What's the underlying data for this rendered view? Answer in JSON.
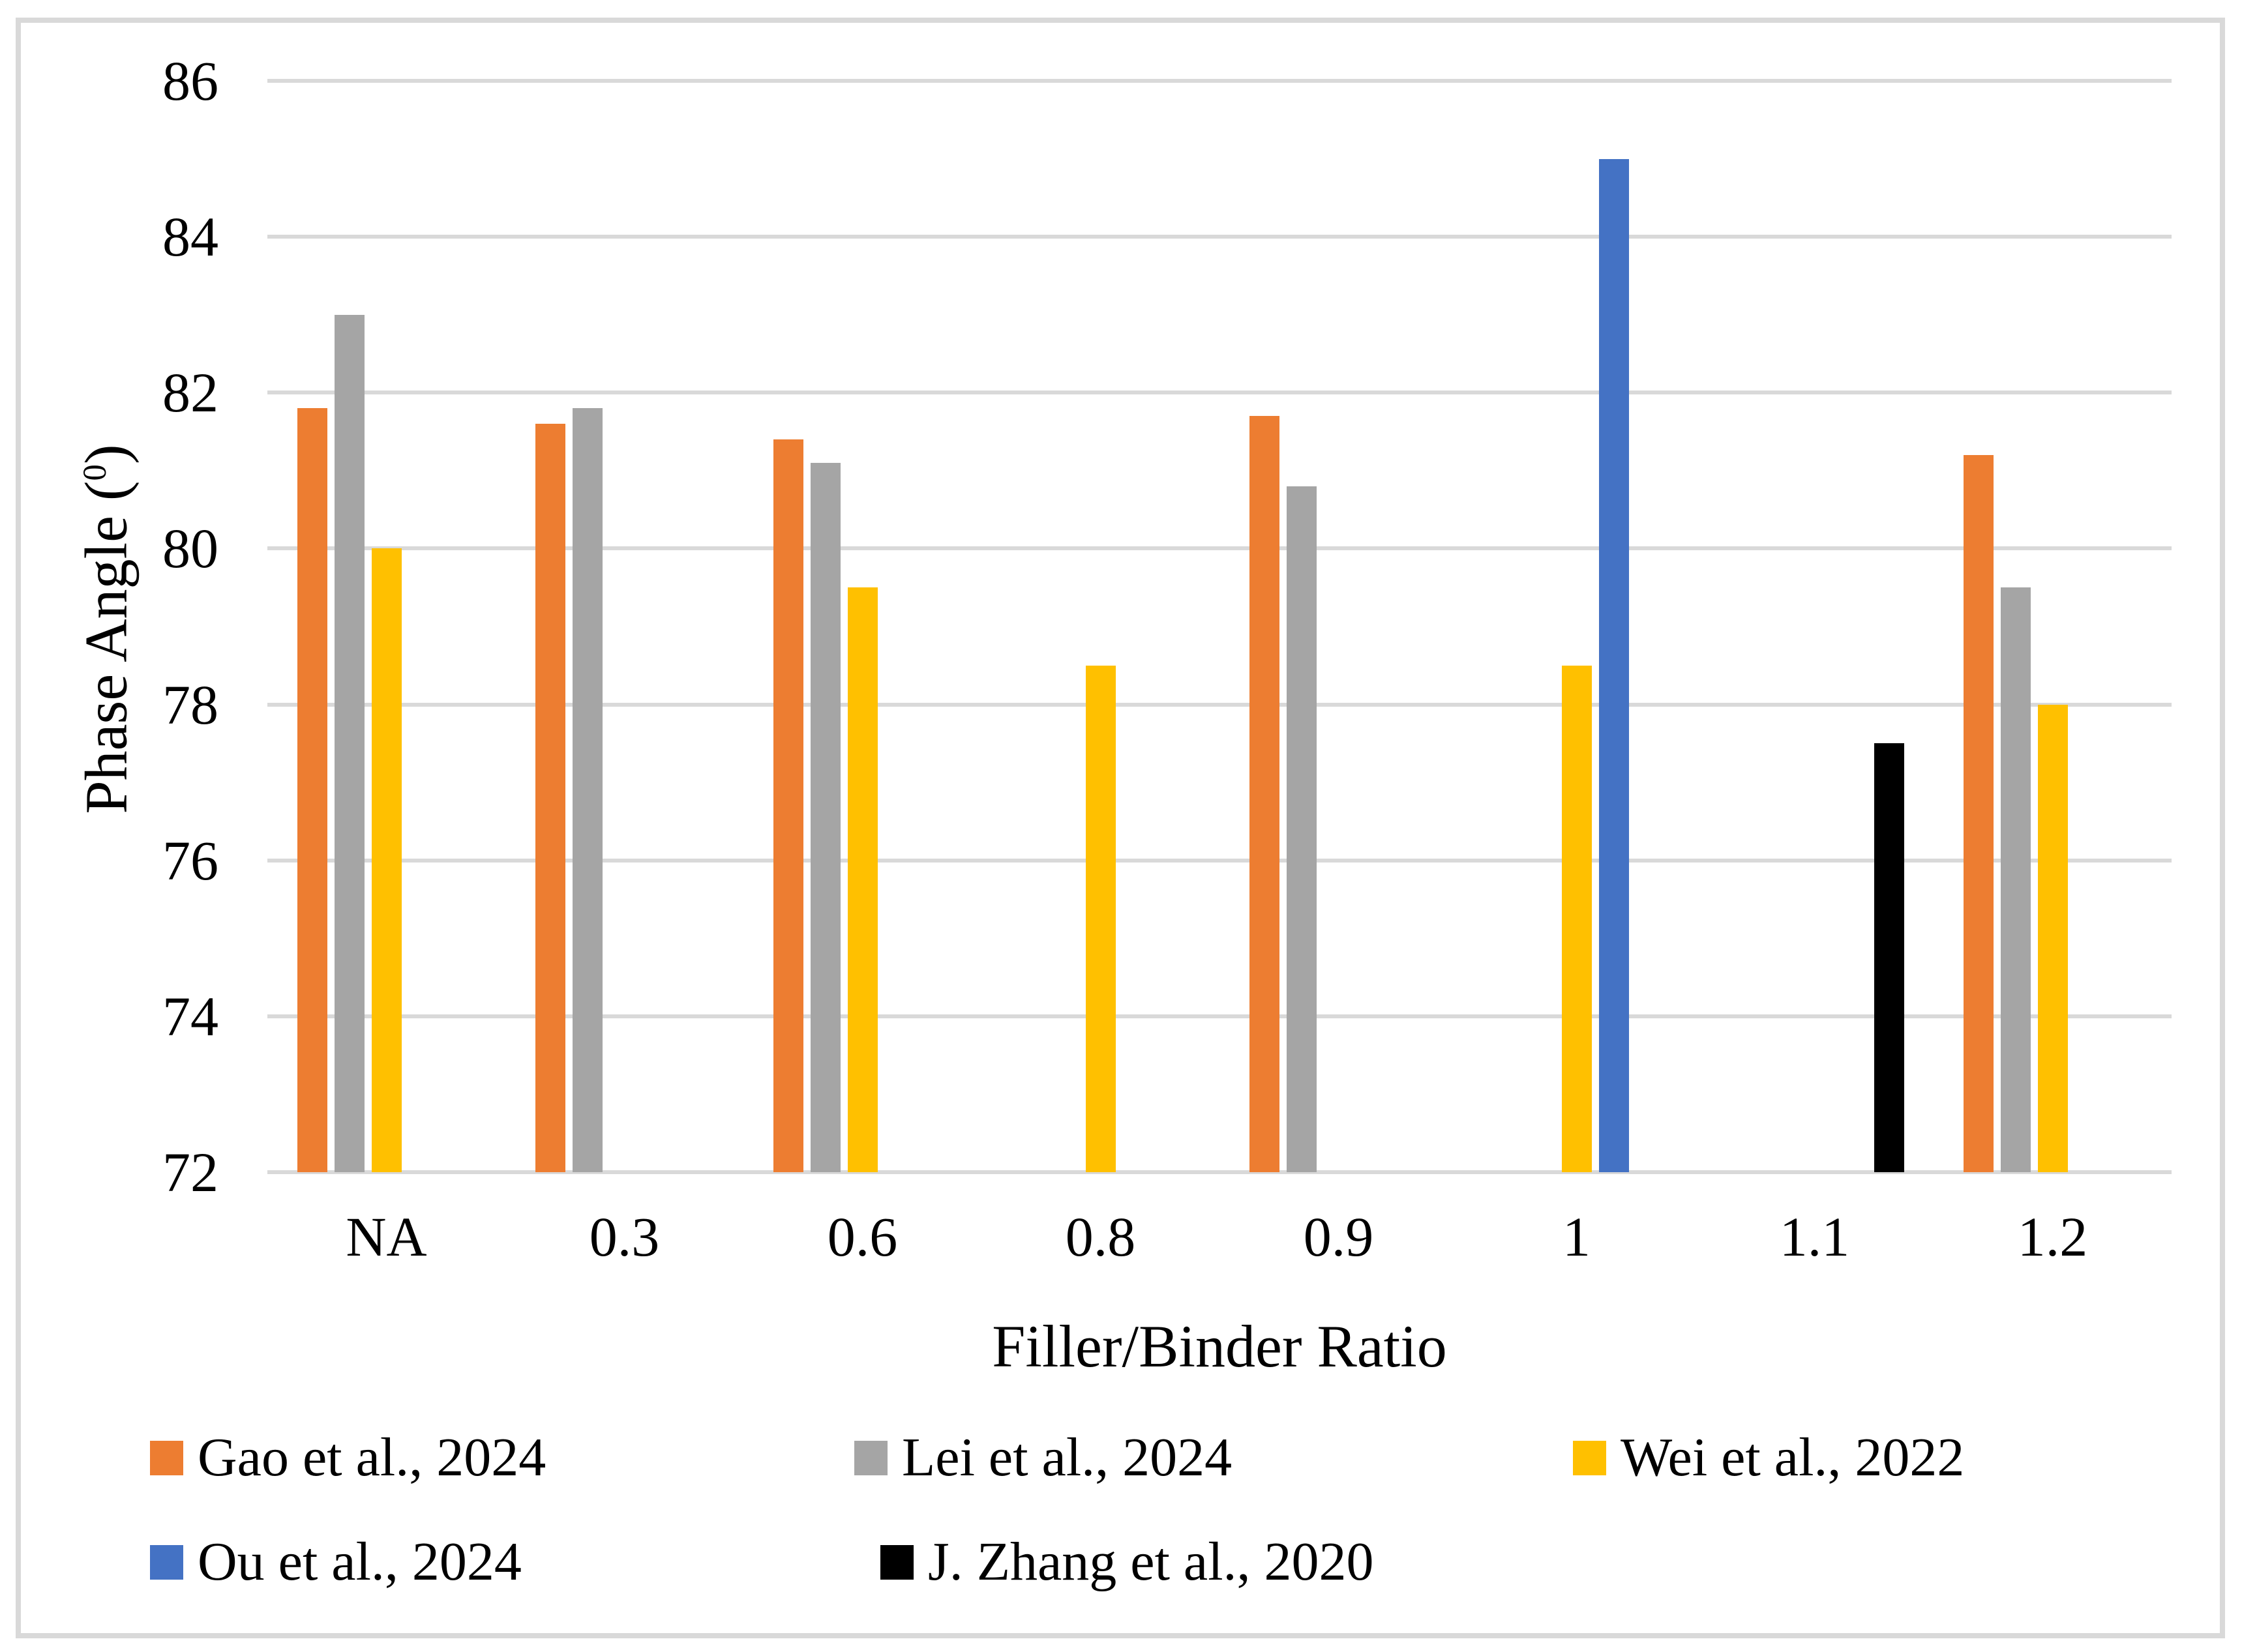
{
  "chart_data": {
    "type": "bar",
    "title": "",
    "xlabel": "Filler/Binder Ratio",
    "ylabel_parts": {
      "prefix": "Phase Angle (",
      "sup": "0",
      "suffix": ")"
    },
    "categories": [
      "NA",
      "0.3",
      "0.6",
      "0.8",
      "0.9",
      "1",
      "1.1",
      "1.2"
    ],
    "series": [
      {
        "name": "Gao et al., 2024",
        "color": "#ED7D31",
        "values": [
          81.8,
          81.6,
          81.4,
          null,
          81.7,
          null,
          null,
          81.2
        ]
      },
      {
        "name": "Lei et al., 2024",
        "color": "#A5A5A5",
        "values": [
          83.0,
          81.8,
          81.1,
          null,
          80.8,
          null,
          null,
          79.5
        ]
      },
      {
        "name": "Wei et al., 2022",
        "color": "#FFC000",
        "values": [
          80.0,
          null,
          79.5,
          78.5,
          null,
          78.5,
          null,
          78.0
        ]
      },
      {
        "name": "Ou et al., 2024",
        "color": "#4472C4",
        "values": [
          null,
          null,
          null,
          null,
          null,
          85.0,
          null,
          null
        ]
      },
      {
        "name": "J. Zhang et al., 2020",
        "color": "#000000",
        "values": [
          null,
          null,
          null,
          null,
          null,
          null,
          77.5,
          null
        ]
      }
    ],
    "ylim": [
      72,
      86
    ],
    "ytick_step": 2,
    "grid": true,
    "legend_position": "bottom",
    "gridline_color": "#D9D9D9",
    "border_color": "#D9D9D9"
  },
  "legend_layout": {
    "rows": [
      {
        "y": 2196,
        "entries": [
          {
            "series": 0,
            "x": 230
          },
          {
            "series": 1,
            "x": 1310
          },
          {
            "series": 2,
            "x": 2412
          }
        ]
      },
      {
        "y": 2356,
        "entries": [
          {
            "series": 3,
            "x": 230
          },
          {
            "series": 4,
            "x": 1350
          }
        ]
      }
    ]
  }
}
